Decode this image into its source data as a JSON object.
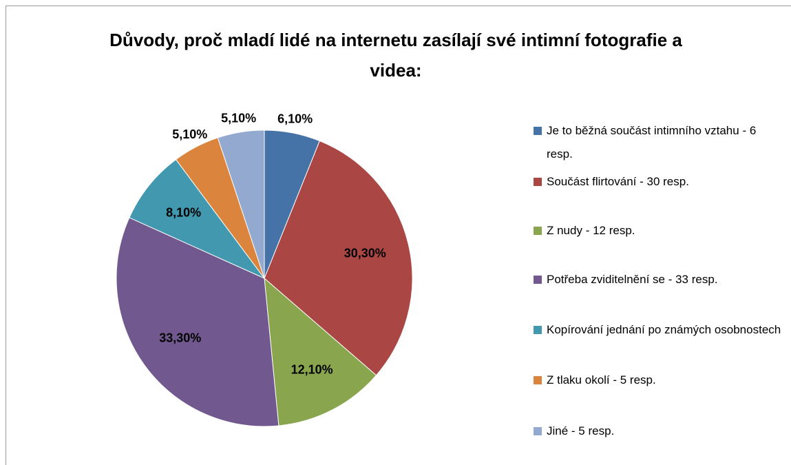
{
  "chart_data": {
    "type": "pie",
    "title": "Důvody, proč mladí lidé na internetu zasílají své intimní fotografie a videa:",
    "categories": [
      "Je to běžná součást intimního vztahu - 6 resp.",
      "Součást flirtování - 30 resp.",
      "Z nudy - 12 resp.",
      "Potřeba zviditelnění se - 33 resp.",
      "Kopírování jednání po známých osobnostech",
      "Z tlaku okolí - 5 resp.",
      "Jiné - 5 resp."
    ],
    "values": [
      6.1,
      30.3,
      12.1,
      33.3,
      8.1,
      5.1,
      5.1
    ],
    "value_labels": [
      "6,10%",
      "30,30%",
      "12,10%",
      "33,30%",
      "8,10%",
      "5,10%",
      "5,10%"
    ],
    "colors": [
      "#4572a7",
      "#aa4643",
      "#89a54e",
      "#71588f",
      "#4198af",
      "#db843d",
      "#93a9cf"
    ],
    "legend": "right"
  }
}
